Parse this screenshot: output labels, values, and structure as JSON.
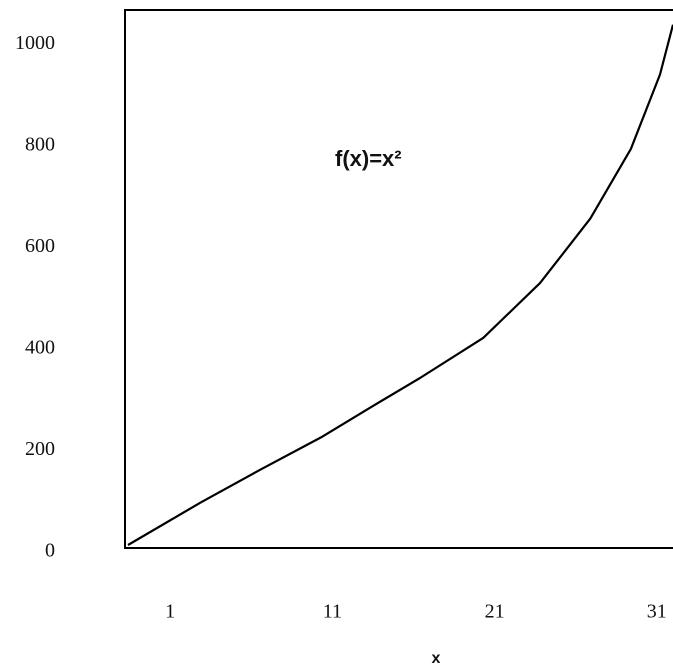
{
  "chart_data": {
    "type": "line",
    "annotation": "f(x)=x²",
    "x_label": "x",
    "x": [
      -1.6,
      2.9,
      6.6,
      10.3,
      13.3,
      16.4,
      20.3,
      23.8,
      26.9,
      29.4,
      31.2,
      32
    ],
    "values": [
      6,
      90,
      155,
      218,
      276,
      335,
      414,
      522,
      649,
      786,
      933,
      1031
    ],
    "color": "#000000",
    "xlim": [
      -1.6,
      32
    ],
    "xticks": [
      1,
      11,
      21,
      31
    ],
    "ylim": [
      0,
      1060
    ],
    "yticks": [
      0,
      200,
      400,
      600,
      800,
      1000
    ],
    "grid": false
  }
}
